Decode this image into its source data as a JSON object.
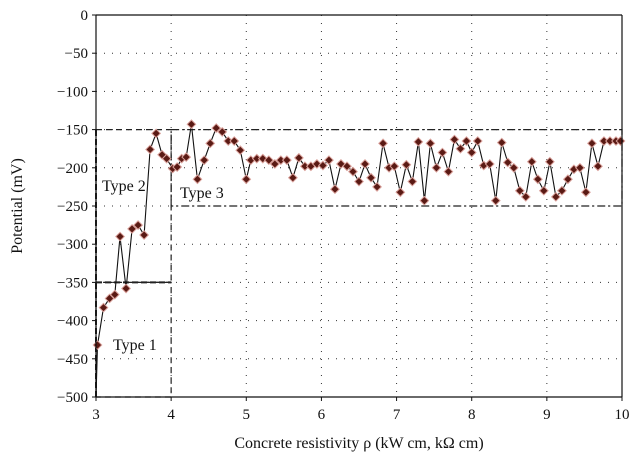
{
  "chart_data": {
    "type": "line",
    "xlabel": "Concrete resistivity ρ (kW cm, kΩ cm)",
    "ylabel": "Potential (mV)",
    "xlim": [
      3,
      10
    ],
    "ylim": [
      -500,
      0
    ],
    "x_ticks": [
      "3",
      "4",
      "5",
      "6",
      "7",
      "8",
      "9",
      "10"
    ],
    "y_ticks": [
      "0",
      "−50",
      "−100",
      "−150",
      "−200",
      "−250",
      "−300",
      "−350",
      "−400",
      "−450",
      "−500"
    ],
    "grid": true,
    "x_tick_values": [
      3,
      4,
      5,
      6,
      7,
      8,
      9,
      10
    ],
    "y_tick_values": [
      0,
      -50,
      -100,
      -150,
      -200,
      -250,
      -300,
      -350,
      -400,
      -450,
      -500
    ],
    "series": [
      {
        "x": [
          3.02,
          3.1,
          3.18,
          3.25,
          3.32,
          3.4,
          3.48,
          3.56,
          3.64,
          3.72,
          3.8,
          3.88,
          3.94,
          4.02,
          4.08,
          4.14,
          4.2,
          4.27,
          4.35,
          4.44,
          4.52,
          4.6,
          4.68,
          4.76,
          4.84,
          4.92,
          5.0,
          5.06,
          5.14,
          5.22,
          5.3,
          5.38,
          5.46,
          5.54,
          5.62,
          5.7,
          5.78,
          5.86,
          5.94,
          6.02,
          6.1,
          6.18,
          6.26,
          6.34,
          6.42,
          6.5,
          6.58,
          6.66,
          6.74,
          6.82,
          6.9,
          6.97,
          7.05,
          7.13,
          7.21,
          7.29,
          7.37,
          7.45,
          7.53,
          7.61,
          7.69,
          7.77,
          7.85,
          7.93,
          8.0,
          8.08,
          8.16,
          8.24,
          8.32,
          8.4,
          8.48,
          8.56,
          8.64,
          8.72,
          8.8,
          8.88,
          8.96,
          9.04,
          9.12,
          9.2,
          9.28,
          9.36,
          9.44,
          9.52,
          9.6,
          9.68,
          9.76,
          9.84,
          9.92,
          9.98
        ],
        "values": [
          -432,
          -383,
          -371,
          -366,
          -290,
          -358,
          -280,
          -275,
          -288,
          -176,
          -155,
          -183,
          -188,
          -201,
          -199,
          -188,
          -186,
          -143,
          -215,
          -190,
          -168,
          -148,
          -153,
          -165,
          -165,
          -177,
          -215,
          -190,
          -188,
          -188,
          -190,
          -195,
          -190,
          -190,
          -213,
          -187,
          -198,
          -198,
          -195,
          -197,
          -190,
          -228,
          -195,
          -198,
          -205,
          -218,
          -195,
          -213,
          -225,
          -168,
          -200,
          -198,
          -232,
          -196,
          -218,
          -166,
          -243,
          -168,
          -200,
          -180,
          -205,
          -163,
          -175,
          -165,
          -180,
          -165,
          -197,
          -195,
          -243,
          -167,
          -193,
          -200,
          -230,
          -238,
          -192,
          -215,
          -230,
          -192,
          -238,
          -230,
          -215,
          -202,
          -200,
          -232,
          -168,
          -198,
          -165,
          -165,
          -165,
          -165
        ]
      }
    ],
    "annotations": [
      "Type 1",
      "Type 2",
      "Type 3"
    ],
    "regions": [
      {
        "label": "Type 1",
        "x": [
          3.0,
          4.0
        ],
        "y": [
          -500,
          -350
        ]
      },
      {
        "label": "Type 2",
        "x": [
          3.0,
          4.0
        ],
        "y": [
          -350,
          -150
        ]
      },
      {
        "label": "Type 3",
        "x": [
          4.0,
          10.0
        ],
        "y": [
          -250,
          -150
        ]
      }
    ]
  }
}
